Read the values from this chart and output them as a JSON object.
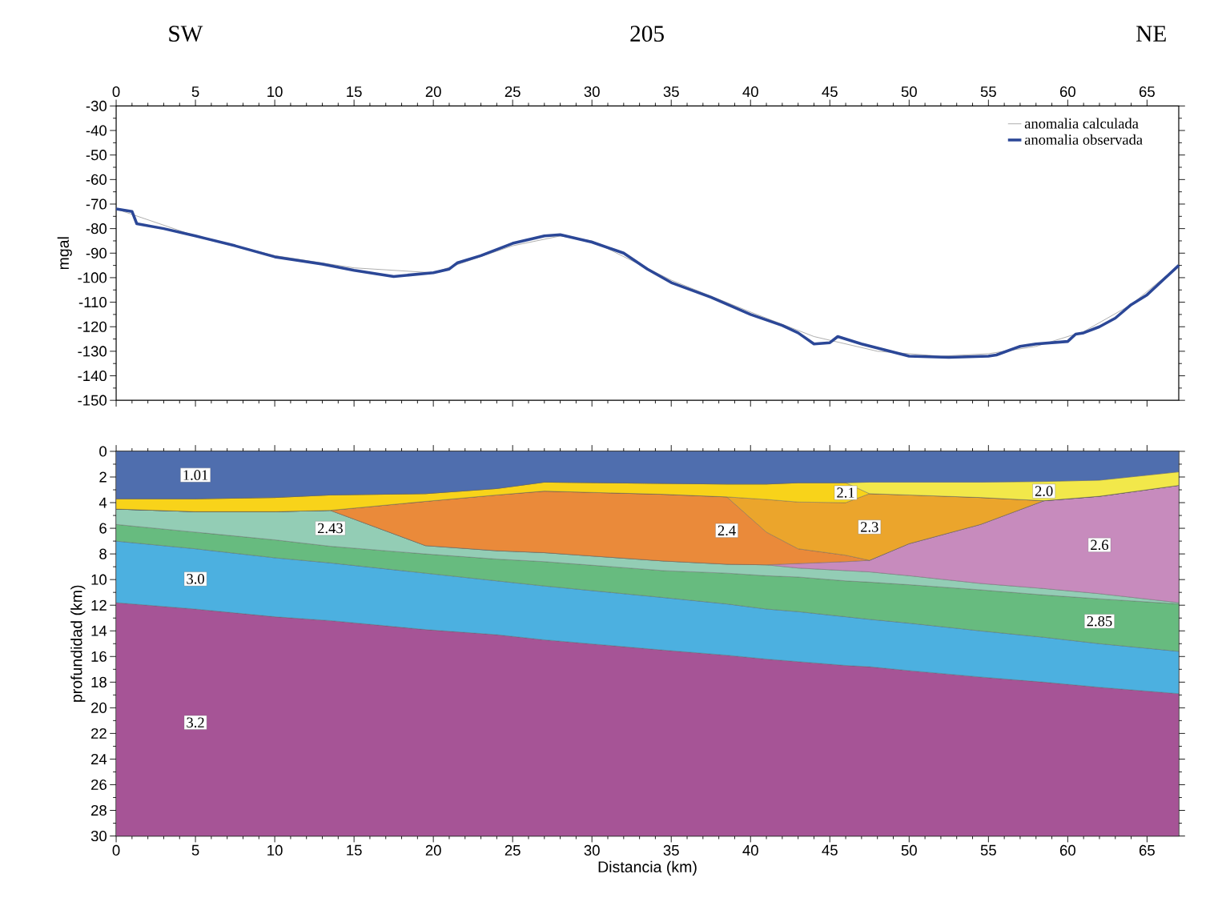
{
  "chart_data": [
    {
      "type": "line",
      "title": "205",
      "annotations": [
        "SW",
        "NE"
      ],
      "ylabel": "mgal",
      "xlim": [
        0,
        67
      ],
      "xticks": [
        0,
        5,
        10,
        15,
        20,
        25,
        30,
        35,
        40,
        45,
        50,
        55,
        60,
        65
      ],
      "ylim": [
        -150,
        -30
      ],
      "yticks": [
        -30,
        -40,
        -50,
        -60,
        -70,
        -80,
        -90,
        -100,
        -110,
        -120,
        -130,
        -140,
        -150
      ],
      "legend": "top right",
      "series": [
        {
          "name": "anomalia calculada",
          "color": "#8a8a8a",
          "x": [
            0,
            5,
            10,
            15,
            20,
            25,
            28,
            30,
            35,
            40,
            44,
            48,
            52,
            55,
            58,
            61,
            64,
            67
          ],
          "values": [
            -72,
            -83,
            -91,
            -96,
            -98,
            -87,
            -83,
            -85,
            -101,
            -114,
            -124,
            -130,
            -132,
            -131,
            -128,
            -122,
            -111,
            -95
          ]
        },
        {
          "name": "anomalia observada",
          "color": "#2b4797",
          "x": [
            0,
            1,
            1.3,
            3,
            5,
            7.5,
            10,
            13,
            15,
            17.5,
            20,
            21,
            21.5,
            23,
            25,
            27,
            28,
            30,
            32,
            33.5,
            35,
            37.5,
            40,
            42,
            43,
            44,
            45,
            45.5,
            47,
            50,
            52.5,
            55,
            55.5,
            57,
            58,
            60,
            60.5,
            61,
            62,
            63,
            64,
            65,
            66,
            67
          ],
          "values": [
            -72,
            -73,
            -78,
            -80,
            -83,
            -87,
            -91.5,
            -94.5,
            -97,
            -99.5,
            -98,
            -96.5,
            -94,
            -91,
            -86,
            -83,
            -82.5,
            -85.5,
            -90,
            -96.5,
            -102,
            -108,
            -115,
            -119.5,
            -122.5,
            -127,
            -126.5,
            -124,
            -127,
            -132,
            -132.5,
            -132,
            -131.5,
            -128,
            -127,
            -126,
            -123,
            -122.5,
            -120,
            -116.5,
            -111,
            -107,
            -101,
            -95
          ]
        }
      ]
    },
    {
      "type": "area",
      "stacked": true,
      "xlabel": "Distancia (km)",
      "ylabel": "profundidad (km)",
      "x": [
        0,
        5,
        10,
        13.5,
        19.5,
        24,
        27,
        34.5,
        38.5,
        41,
        43,
        46,
        47.5,
        50,
        54.5,
        58.5,
        62,
        67
      ],
      "xlim": [
        0,
        67
      ],
      "xticks": [
        0,
        5,
        10,
        15,
        20,
        25,
        30,
        35,
        40,
        45,
        50,
        55,
        60,
        65
      ],
      "ylim": [
        30,
        0
      ],
      "yticks": [
        0,
        2,
        4,
        6,
        8,
        10,
        12,
        14,
        16,
        18,
        20,
        22,
        24,
        26,
        28,
        30
      ],
      "series": [
        {
          "name": "1.01",
          "color": "#4f6eae",
          "values": [
            3.7,
            3.7,
            3.6,
            3.4,
            3.3,
            2.9,
            2.4,
            2.5,
            2.55,
            2.55,
            2.45,
            2.45,
            2.4,
            2.4,
            2.4,
            2.35,
            2.25,
            1.6
          ]
        },
        {
          "name": "2.0",
          "color": "#f2e84a",
          "values": [
            0,
            0,
            0,
            0,
            0,
            0,
            0,
            0,
            0,
            0,
            0,
            0,
            0.9,
            1.0,
            1.2,
            1.5,
            1.25,
            1.05
          ]
        },
        {
          "name": "2.1",
          "color": "#f8d31a",
          "values": [
            0.8,
            1.0,
            1.1,
            1.2,
            0.6,
            0.5,
            0.7,
            0.85,
            1.0,
            1.2,
            1.5,
            1.55,
            0,
            0,
            0,
            0,
            0,
            0
          ]
        },
        {
          "name": "2.3",
          "color": "#eba52c",
          "values": [
            0,
            0,
            0,
            0,
            0,
            0,
            0,
            0,
            0,
            2.55,
            3.65,
            4.1,
            5.2,
            3.8,
            2.1,
            0,
            0,
            0
          ]
        },
        {
          "name": "2.4",
          "color": "#ea8a3a",
          "values": [
            0,
            0,
            0,
            0,
            3.45,
            4.35,
            4.8,
            5.2,
            5.25,
            2.55,
            1.15,
            0.5,
            0,
            0,
            0,
            0,
            0,
            0
          ]
        },
        {
          "name": "2.6",
          "color": "#c78bbd",
          "values": [
            0,
            0,
            0,
            0,
            0,
            0,
            0,
            0,
            0,
            0,
            0.35,
            0.7,
            0.9,
            2.5,
            4.6,
            6.85,
            7.6,
            9.15
          ]
        },
        {
          "name": "2.43",
          "color": "#93cdb5",
          "values": [
            1.2,
            1.6,
            2.2,
            2.8,
            0.65,
            0.65,
            0.7,
            0.75,
            0.7,
            0.85,
            0.7,
            0.8,
            0.8,
            0.7,
            0.5,
            0.5,
            0.4,
            0.1
          ]
        },
        {
          "name": "2.85",
          "color": "#67bb7f",
          "values": [
            1.3,
            1.3,
            1.4,
            1.3,
            1.5,
            1.7,
            1.9,
            2.1,
            2.4,
            2.6,
            2.7,
            2.8,
            2.9,
            3.0,
            3.2,
            3.3,
            3.5,
            3.7
          ]
        },
        {
          "name": "3.0",
          "color": "#4cb0e0",
          "values": [
            4.8,
            4.7,
            4.6,
            4.5,
            4.4,
            4.2,
            4.2,
            4.1,
            4.0,
            3.9,
            3.9,
            3.8,
            3.7,
            3.7,
            3.6,
            3.5,
            3.4,
            3.3
          ]
        },
        {
          "name": "3.2",
          "color": "#a65496",
          "values": [
            18.2,
            17.7,
            17.1,
            16.8,
            16.1,
            15.7,
            15.3,
            14.5,
            14.1,
            13.8,
            13.6,
            13.3,
            13.2,
            12.9,
            12.4,
            12.0,
            11.6,
            11.1
          ]
        }
      ]
    }
  ]
}
